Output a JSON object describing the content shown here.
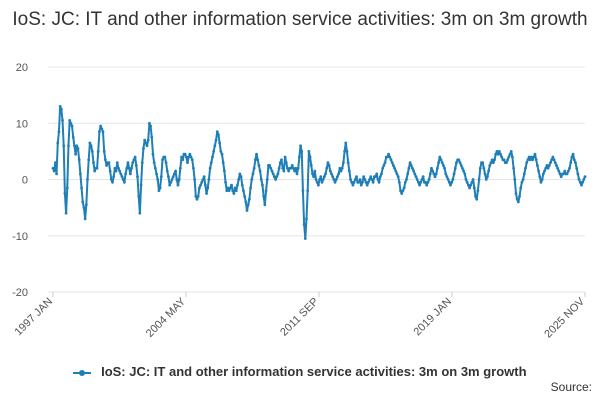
{
  "title": "IoS: JC: IT and other information service activities: 3m on 3m growth",
  "source_label": "Source:",
  "colors": {
    "series": "#1f7fb6",
    "grid": "#e6e6e6",
    "axis_text": "#555555"
  },
  "chart_data": {
    "type": "line",
    "title": "IoS: JC: IT and other information service activities: 3m on 3m growth",
    "xlabel": "",
    "ylabel": "",
    "ylim": [
      -20,
      20
    ],
    "yticks": [
      -20,
      -10,
      0,
      10,
      20
    ],
    "xticks": [
      "1997 JAN",
      "2004 MAY",
      "2011 SEP",
      "2019 JAN",
      "2025 NOV"
    ],
    "x_start": "1997 JAN",
    "x_end": "2025 NOV",
    "grid": true,
    "legend_position": "bottom",
    "series": [
      {
        "name": "IoS: JC: IT and other information service activities: 3m on 3m growth",
        "values": [
          2,
          1.5,
          3,
          1,
          6.5,
          8.5,
          13,
          12.5,
          10.5,
          6,
          -2.5,
          -6,
          -1.5,
          6,
          10.5,
          10,
          9.5,
          7.5,
          6,
          4.5,
          6,
          5.5,
          3.5,
          1,
          -1.5,
          -4,
          -5,
          -7,
          -4.5,
          0,
          3.5,
          6.5,
          6,
          5,
          3,
          1.5,
          2,
          2,
          5,
          8.5,
          9.5,
          9,
          8.5,
          5,
          3.5,
          2.5,
          3,
          3,
          1.5,
          0,
          -0.5,
          0.5,
          2,
          1.5,
          3,
          2,
          1.5,
          1,
          0.5,
          0,
          -0.5,
          1,
          2,
          3,
          2,
          1,
          2,
          3,
          3.5,
          4,
          2.5,
          0.5,
          -3,
          -6,
          -1,
          3,
          5.5,
          7,
          6.5,
          6,
          7,
          10,
          9.5,
          7.5,
          4.5,
          3,
          2,
          1,
          0,
          -2,
          -1.5,
          0.5,
          3.5,
          4,
          4,
          3,
          1.5,
          0.5,
          -1,
          -0.5,
          0,
          0.5,
          1,
          1.5,
          0,
          -1,
          0,
          2,
          4,
          3.5,
          4.5,
          4.5,
          4,
          3,
          4,
          4.5,
          4,
          3.5,
          2,
          0,
          -3,
          -3.5,
          -3,
          -1.5,
          -1,
          -0.5,
          0,
          0.5,
          -1,
          -2.5,
          -1.5,
          0,
          2,
          3,
          4,
          5,
          6,
          7,
          8.5,
          8,
          6.5,
          5,
          4.5,
          3,
          1.5,
          -0.5,
          -2,
          -1.5,
          -2,
          -1.5,
          -1,
          -2,
          -2.5,
          -1.5,
          -2,
          -1,
          0,
          1,
          0.5,
          -1,
          -2,
          -3,
          -4,
          -5.5,
          -4.5,
          -3.5,
          -1.5,
          0,
          1,
          2,
          3.5,
          4.5,
          3.5,
          2.5,
          1.5,
          0,
          -1,
          -3,
          -4.5,
          -2,
          0,
          2.5,
          2.5,
          2,
          1.5,
          1,
          0.5,
          0,
          0.5,
          1,
          2,
          3,
          3.5,
          2,
          1.5,
          4,
          3,
          2,
          1.5,
          2,
          2,
          2.5,
          2,
          1.5,
          2,
          1,
          2,
          4,
          6,
          5,
          -2,
          -8,
          -10.5,
          -7,
          -2,
          5,
          4,
          2.5,
          1,
          0.5,
          1.5,
          0,
          -0.5,
          -1,
          0,
          0.5,
          -0.5,
          0,
          0.5,
          1,
          2,
          3,
          2.5,
          1.5,
          1,
          0.5,
          0,
          -0.5,
          0,
          0.5,
          1,
          2,
          1.5,
          2,
          3,
          5,
          6.5,
          5,
          3,
          1.5,
          0,
          -0.5,
          -1,
          -0.5,
          0,
          0.5,
          -0.5,
          -0.5,
          0,
          -1,
          -0.5,
          0.5,
          0,
          -0.5,
          -1,
          -0.5,
          0,
          0.5,
          0,
          -0.5,
          0.5,
          0.5,
          1,
          0,
          -0.5,
          0.5,
          1,
          2,
          2.5,
          3,
          4,
          4,
          4.5,
          4,
          3.5,
          3,
          2.5,
          2,
          1.5,
          1,
          0.5,
          -0.5,
          -2,
          -2.5,
          -2,
          -1.5,
          -0.5,
          0,
          1,
          2,
          3,
          2.5,
          2,
          1.5,
          1,
          0.5,
          0,
          -0.5,
          -1,
          -0.5,
          0,
          0.5,
          -0.5,
          -0.5,
          -1,
          -0.5,
          0,
          1,
          2,
          1.5,
          1,
          0.5,
          1,
          2,
          3,
          4,
          3.5,
          3,
          2.5,
          2,
          1,
          0.5,
          0,
          -0.5,
          -1,
          -0.5,
          0,
          1,
          2,
          3,
          3.5,
          3.5,
          3,
          2.5,
          2,
          1.5,
          1,
          0,
          -0.5,
          -1,
          -1.5,
          -1,
          -0.5,
          0,
          -1.5,
          -3,
          -3.5,
          -2,
          0,
          2,
          3,
          3,
          2,
          1,
          0,
          0.5,
          1.5,
          2.5,
          3,
          3.5,
          3,
          3.5,
          4.5,
          5,
          4.5,
          5,
          4.5,
          4,
          3.5,
          3.5,
          3,
          3,
          3.5,
          4,
          4.5,
          5,
          4,
          2,
          0,
          -2.5,
          -3.5,
          -4,
          -3,
          -1.5,
          -0.5,
          0,
          1,
          2,
          3,
          3.5,
          4,
          3.5,
          4,
          3.5,
          4,
          4.5,
          3.5,
          2.5,
          1.5,
          0.5,
          -0.5,
          0,
          1,
          1.5,
          2,
          2.5,
          2,
          2.5,
          3,
          3.5,
          4,
          3.5,
          3,
          2.5,
          2,
          1.5,
          1,
          0.5,
          1,
          1,
          1.5,
          1,
          1,
          1.5,
          2,
          3,
          4,
          4.5,
          3.5,
          3,
          2,
          1,
          0,
          -0.5,
          -1,
          -0.5,
          0,
          0.5
        ]
      }
    ]
  }
}
